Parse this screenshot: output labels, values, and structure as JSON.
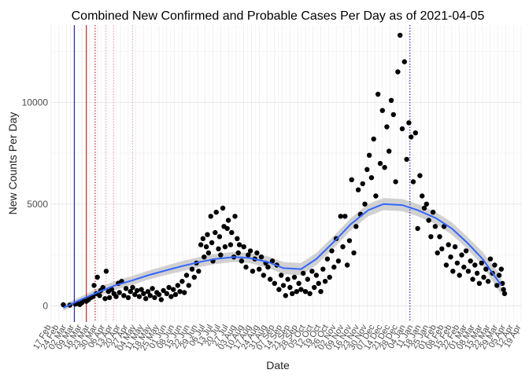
{
  "chart_data": {
    "type": "scatter",
    "title": "Combined New Confirmed and Probable Cases Per Day as of 2021-04-05",
    "xlabel": "Date",
    "ylabel": "New Counts Per Day",
    "xlim": [
      "2020-02-17",
      "2021-04-19"
    ],
    "ylim": [
      -800,
      13800
    ],
    "yticks": [
      0,
      5000,
      10000
    ],
    "ytick_labels": [
      "0",
      "5000",
      "10000"
    ],
    "xtick_labels": [
      "17 Feb",
      "24 Feb",
      "02 Mar",
      "09 Mar",
      "16 Mar",
      "23 Mar",
      "30 Mar",
      "06 Apr",
      "13 Apr",
      "20 Apr",
      "27 Apr",
      "04 May",
      "11 May",
      "18 May",
      "25 May",
      "01 Jun",
      "08 Jun",
      "15 Jun",
      "22 Jun",
      "29 Jun",
      "06 Jul",
      "13 Jul",
      "20 Jul",
      "27 Jul",
      "03 Aug",
      "10 Aug",
      "17 Aug",
      "24 Aug",
      "31 Aug",
      "07 Sep",
      "14 Sep",
      "21 Sep",
      "28 Sep",
      "05 Oct",
      "12 Oct",
      "19 Oct",
      "26 Oct",
      "02 Nov",
      "09 Nov",
      "16 Nov",
      "23 Nov",
      "30 Nov",
      "07 Dec",
      "14 Dec",
      "21 Dec",
      "28 Dec",
      "04 Jan",
      "11 Jan",
      "18 Jan",
      "25 Jan",
      "01 Feb",
      "08 Feb",
      "15 Feb",
      "22 Feb",
      "01 Mar",
      "08 Mar",
      "15 Mar",
      "22 Mar",
      "29 Mar",
      "05 Apr",
      "12 Apr",
      "19 Apr"
    ],
    "grid": true,
    "point_color": "#000000",
    "smooth_color": "#3366ff",
    "band_color": "#c9c9c9",
    "vlines": [
      {
        "date": "2020-03-09",
        "color": "#0000a0",
        "style": "solid"
      },
      {
        "date": "2020-03-20",
        "color": "#b00000",
        "style": "solid"
      },
      {
        "date": "2020-03-28",
        "color": "#b00000",
        "style": "dotted"
      },
      {
        "date": "2020-04-07",
        "color": "#f0a0a0",
        "style": "dotted"
      },
      {
        "date": "2020-04-14",
        "color": "#f0a0a0",
        "style": "dotted"
      },
      {
        "date": "2020-05-01",
        "color": "#f0a0a0",
        "style": "dotted"
      },
      {
        "date": "2021-01-08",
        "color": "#0000a0",
        "style": "dotted"
      }
    ],
    "smooth": {
      "x": [
        "2020-02-28",
        "2020-03-15",
        "2020-04-01",
        "2020-04-15",
        "2020-05-01",
        "2020-05-15",
        "2020-06-01",
        "2020-06-15",
        "2020-07-01",
        "2020-07-15",
        "2020-08-01",
        "2020-08-15",
        "2020-09-01",
        "2020-09-15",
        "2020-10-01",
        "2020-10-15",
        "2020-11-01",
        "2020-11-15",
        "2020-12-01",
        "2020-12-15",
        "2021-01-01",
        "2021-01-15",
        "2021-02-01",
        "2021-02-15",
        "2021-03-01",
        "2021-03-15",
        "2021-04-01"
      ],
      "y": [
        -100,
        300,
        700,
        1000,
        1250,
        1500,
        1750,
        1950,
        2150,
        2300,
        2400,
        2350,
        2150,
        1850,
        1800,
        2300,
        3200,
        4000,
        4700,
        5000,
        4950,
        4700,
        4300,
        3800,
        3100,
        2300,
        1000
      ],
      "band": [
        150,
        150,
        200,
        220,
        220,
        220,
        230,
        250,
        250,
        250,
        250,
        250,
        280,
        300,
        300,
        300,
        300,
        300,
        300,
        300,
        300,
        300,
        300,
        300,
        300,
        350,
        450
      ]
    },
    "points": [
      {
        "x": "2020-02-28",
        "y": 50
      },
      {
        "x": "2020-03-05",
        "y": 30
      },
      {
        "x": "2020-03-10",
        "y": 80
      },
      {
        "x": "2020-03-12",
        "y": 120
      },
      {
        "x": "2020-03-14",
        "y": 60
      },
      {
        "x": "2020-03-16",
        "y": 150
      },
      {
        "x": "2020-03-18",
        "y": 250
      },
      {
        "x": "2020-03-20",
        "y": 220
      },
      {
        "x": "2020-03-22",
        "y": 300
      },
      {
        "x": "2020-03-24",
        "y": 400
      },
      {
        "x": "2020-03-26",
        "y": 450
      },
      {
        "x": "2020-03-27",
        "y": 1000
      },
      {
        "x": "2020-03-29",
        "y": 600
      },
      {
        "x": "2020-03-30",
        "y": 1400
      },
      {
        "x": "2020-04-01",
        "y": 500
      },
      {
        "x": "2020-04-02",
        "y": 750
      },
      {
        "x": "2020-04-04",
        "y": 900
      },
      {
        "x": "2020-04-06",
        "y": 350
      },
      {
        "x": "2020-04-07",
        "y": 1700
      },
      {
        "x": "2020-04-09",
        "y": 700
      },
      {
        "x": "2020-04-10",
        "y": 400
      },
      {
        "x": "2020-04-12",
        "y": 800
      },
      {
        "x": "2020-04-14",
        "y": 600
      },
      {
        "x": "2020-04-16",
        "y": 450
      },
      {
        "x": "2020-04-18",
        "y": 1100
      },
      {
        "x": "2020-04-19",
        "y": 650
      },
      {
        "x": "2020-04-21",
        "y": 1200
      },
      {
        "x": "2020-04-23",
        "y": 500
      },
      {
        "x": "2020-04-25",
        "y": 850
      },
      {
        "x": "2020-04-27",
        "y": 400
      },
      {
        "x": "2020-04-29",
        "y": 700
      },
      {
        "x": "2020-05-01",
        "y": 900
      },
      {
        "x": "2020-05-03",
        "y": 550
      },
      {
        "x": "2020-05-05",
        "y": 750
      },
      {
        "x": "2020-05-07",
        "y": 450
      },
      {
        "x": "2020-05-09",
        "y": 800
      },
      {
        "x": "2020-05-11",
        "y": 600
      },
      {
        "x": "2020-05-13",
        "y": 350
      },
      {
        "x": "2020-05-15",
        "y": 700
      },
      {
        "x": "2020-05-17",
        "y": 500
      },
      {
        "x": "2020-05-19",
        "y": 850
      },
      {
        "x": "2020-05-21",
        "y": 400
      },
      {
        "x": "2020-05-23",
        "y": 650
      },
      {
        "x": "2020-05-25",
        "y": 550
      },
      {
        "x": "2020-05-27",
        "y": 300
      },
      {
        "x": "2020-05-29",
        "y": 750
      },
      {
        "x": "2020-06-01",
        "y": 600
      },
      {
        "x": "2020-06-03",
        "y": 900
      },
      {
        "x": "2020-06-05",
        "y": 450
      },
      {
        "x": "2020-06-07",
        "y": 800
      },
      {
        "x": "2020-06-09",
        "y": 550
      },
      {
        "x": "2020-06-11",
        "y": 1000
      },
      {
        "x": "2020-06-13",
        "y": 700
      },
      {
        "x": "2020-06-15",
        "y": 1200
      },
      {
        "x": "2020-06-17",
        "y": 650
      },
      {
        "x": "2020-06-19",
        "y": 1500
      },
      {
        "x": "2020-06-21",
        "y": 1000
      },
      {
        "x": "2020-06-24",
        "y": 1800
      },
      {
        "x": "2020-06-26",
        "y": 1400
      },
      {
        "x": "2020-06-28",
        "y": 2100
      },
      {
        "x": "2020-06-30",
        "y": 1700
      },
      {
        "x": "2020-07-02",
        "y": 3000
      },
      {
        "x": "2020-07-04",
        "y": 3300
      },
      {
        "x": "2020-07-05",
        "y": 2400
      },
      {
        "x": "2020-07-07",
        "y": 2900
      },
      {
        "x": "2020-07-08",
        "y": 3500
      },
      {
        "x": "2020-07-09",
        "y": 2600
      },
      {
        "x": "2020-07-11",
        "y": 4400
      },
      {
        "x": "2020-07-12",
        "y": 3100
      },
      {
        "x": "2020-07-13",
        "y": 2200
      },
      {
        "x": "2020-07-15",
        "y": 3600
      },
      {
        "x": "2020-07-16",
        "y": 4600
      },
      {
        "x": "2020-07-18",
        "y": 2800
      },
      {
        "x": "2020-07-19",
        "y": 3400
      },
      {
        "x": "2020-07-20",
        "y": 2500
      },
      {
        "x": "2020-07-22",
        "y": 4800
      },
      {
        "x": "2020-07-23",
        "y": 3900
      },
      {
        "x": "2020-07-24",
        "y": 2900
      },
      {
        "x": "2020-07-26",
        "y": 3800
      },
      {
        "x": "2020-07-27",
        "y": 4200
      },
      {
        "x": "2020-07-29",
        "y": 3000
      },
      {
        "x": "2020-07-30",
        "y": 3600
      },
      {
        "x": "2020-08-01",
        "y": 2400
      },
      {
        "x": "2020-08-02",
        "y": 4400
      },
      {
        "x": "2020-08-04",
        "y": 3300
      },
      {
        "x": "2020-08-05",
        "y": 2600
      },
      {
        "x": "2020-08-06",
        "y": 3000
      },
      {
        "x": "2020-08-08",
        "y": 2200
      },
      {
        "x": "2020-08-10",
        "y": 2900
      },
      {
        "x": "2020-08-12",
        "y": 1900
      },
      {
        "x": "2020-08-14",
        "y": 2500
      },
      {
        "x": "2020-08-16",
        "y": 2700
      },
      {
        "x": "2020-08-18",
        "y": 1700
      },
      {
        "x": "2020-08-20",
        "y": 2300
      },
      {
        "x": "2020-08-22",
        "y": 2600
      },
      {
        "x": "2020-08-24",
        "y": 1800
      },
      {
        "x": "2020-08-26",
        "y": 2400
      },
      {
        "x": "2020-08-28",
        "y": 1500
      },
      {
        "x": "2020-08-30",
        "y": 2100
      },
      {
        "x": "2020-09-01",
        "y": 1900
      },
      {
        "x": "2020-09-03",
        "y": 1300
      },
      {
        "x": "2020-09-05",
        "y": 2200
      },
      {
        "x": "2020-09-07",
        "y": 1100
      },
      {
        "x": "2020-09-09",
        "y": 2000
      },
      {
        "x": "2020-09-11",
        "y": 800
      },
      {
        "x": "2020-09-13",
        "y": 1500
      },
      {
        "x": "2020-09-15",
        "y": 1000
      },
      {
        "x": "2020-09-17",
        "y": 500
      },
      {
        "x": "2020-09-19",
        "y": 1300
      },
      {
        "x": "2020-09-21",
        "y": 900
      },
      {
        "x": "2020-09-23",
        "y": 600
      },
      {
        "x": "2020-09-25",
        "y": 1400
      },
      {
        "x": "2020-09-27",
        "y": 700
      },
      {
        "x": "2020-09-29",
        "y": 1100
      },
      {
        "x": "2020-10-01",
        "y": 800
      },
      {
        "x": "2020-10-03",
        "y": 1600
      },
      {
        "x": "2020-10-05",
        "y": 700
      },
      {
        "x": "2020-10-07",
        "y": 1300
      },
      {
        "x": "2020-10-09",
        "y": 600
      },
      {
        "x": "2020-10-11",
        "y": 1700
      },
      {
        "x": "2020-10-13",
        "y": 900
      },
      {
        "x": "2020-10-15",
        "y": 1500
      },
      {
        "x": "2020-10-17",
        "y": 1100
      },
      {
        "x": "2020-10-19",
        "y": 700
      },
      {
        "x": "2020-10-21",
        "y": 1800
      },
      {
        "x": "2020-10-23",
        "y": 1200
      },
      {
        "x": "2020-10-25",
        "y": 2300
      },
      {
        "x": "2020-10-27",
        "y": 1400
      },
      {
        "x": "2020-10-29",
        "y": 2700
      },
      {
        "x": "2020-10-31",
        "y": 1900
      },
      {
        "x": "2020-11-02",
        "y": 3300
      },
      {
        "x": "2020-11-04",
        "y": 2200
      },
      {
        "x": "2020-11-06",
        "y": 4400
      },
      {
        "x": "2020-11-08",
        "y": 2900
      },
      {
        "x": "2020-11-10",
        "y": 4400
      },
      {
        "x": "2020-11-12",
        "y": 2000
      },
      {
        "x": "2020-11-14",
        "y": 3200
      },
      {
        "x": "2020-11-16",
        "y": 6200
      },
      {
        "x": "2020-11-18",
        "y": 2600
      },
      {
        "x": "2020-11-20",
        "y": 3900
      },
      {
        "x": "2020-11-22",
        "y": 5700
      },
      {
        "x": "2020-11-24",
        "y": 4500
      },
      {
        "x": "2020-11-26",
        "y": 6000
      },
      {
        "x": "2020-11-28",
        "y": 5000
      },
      {
        "x": "2020-11-30",
        "y": 6700
      },
      {
        "x": "2020-12-02",
        "y": 7400
      },
      {
        "x": "2020-12-04",
        "y": 6300
      },
      {
        "x": "2020-12-06",
        "y": 8200
      },
      {
        "x": "2020-12-08",
        "y": 5400
      },
      {
        "x": "2020-12-10",
        "y": 10400
      },
      {
        "x": "2020-12-12",
        "y": 7000
      },
      {
        "x": "2020-12-14",
        "y": 9600
      },
      {
        "x": "2020-12-16",
        "y": 6800
      },
      {
        "x": "2020-12-18",
        "y": 8800
      },
      {
        "x": "2020-12-20",
        "y": 7600
      },
      {
        "x": "2020-12-22",
        "y": 10100
      },
      {
        "x": "2020-12-24",
        "y": 9400
      },
      {
        "x": "2020-12-26",
        "y": 6100
      },
      {
        "x": "2020-12-28",
        "y": 11500
      },
      {
        "x": "2020-12-30",
        "y": 13300
      },
      {
        "x": "2021-01-01",
        "y": 8700
      },
      {
        "x": "2021-01-03",
        "y": 12000
      },
      {
        "x": "2021-01-05",
        "y": 7200
      },
      {
        "x": "2021-01-07",
        "y": 9000
      },
      {
        "x": "2021-01-09",
        "y": 8300
      },
      {
        "x": "2021-01-11",
        "y": 6100
      },
      {
        "x": "2021-01-13",
        "y": 8500
      },
      {
        "x": "2021-01-15",
        "y": 3800
      },
      {
        "x": "2021-01-17",
        "y": 6400
      },
      {
        "x": "2021-01-19",
        "y": 5400
      },
      {
        "x": "2021-01-21",
        "y": 4800
      },
      {
        "x": "2021-01-23",
        "y": 5000
      },
      {
        "x": "2021-01-25",
        "y": 4200
      },
      {
        "x": "2021-01-27",
        "y": 3400
      },
      {
        "x": "2021-01-29",
        "y": 4600
      },
      {
        "x": "2021-01-31",
        "y": 3900
      },
      {
        "x": "2021-02-02",
        "y": 2600
      },
      {
        "x": "2021-02-04",
        "y": 3400
      },
      {
        "x": "2021-02-06",
        "y": 2800
      },
      {
        "x": "2021-02-08",
        "y": 3900
      },
      {
        "x": "2021-02-10",
        "y": 2000
      },
      {
        "x": "2021-02-12",
        "y": 3000
      },
      {
        "x": "2021-02-14",
        "y": 2400
      },
      {
        "x": "2021-02-16",
        "y": 1700
      },
      {
        "x": "2021-02-18",
        "y": 2900
      },
      {
        "x": "2021-02-20",
        "y": 2100
      },
      {
        "x": "2021-02-22",
        "y": 1500
      },
      {
        "x": "2021-02-24",
        "y": 2500
      },
      {
        "x": "2021-02-26",
        "y": 1900
      },
      {
        "x": "2021-02-28",
        "y": 2700
      },
      {
        "x": "2021-03-02",
        "y": 1700
      },
      {
        "x": "2021-03-04",
        "y": 2200
      },
      {
        "x": "2021-03-06",
        "y": 1300
      },
      {
        "x": "2021-03-08",
        "y": 2000
      },
      {
        "x": "2021-03-10",
        "y": 1600
      },
      {
        "x": "2021-03-12",
        "y": 1100
      },
      {
        "x": "2021-03-14",
        "y": 2100
      },
      {
        "x": "2021-03-16",
        "y": 1400
      },
      {
        "x": "2021-03-18",
        "y": 1800
      },
      {
        "x": "2021-03-20",
        "y": 1200
      },
      {
        "x": "2021-03-22",
        "y": 2300
      },
      {
        "x": "2021-03-24",
        "y": 1600
      },
      {
        "x": "2021-03-26",
        "y": 2000
      },
      {
        "x": "2021-03-28",
        "y": 1000
      },
      {
        "x": "2021-03-30",
        "y": 1500
      },
      {
        "x": "2021-04-01",
        "y": 1800
      },
      {
        "x": "2021-04-02",
        "y": 1100
      },
      {
        "x": "2021-04-03",
        "y": 800
      },
      {
        "x": "2021-04-04",
        "y": 600
      }
    ]
  }
}
